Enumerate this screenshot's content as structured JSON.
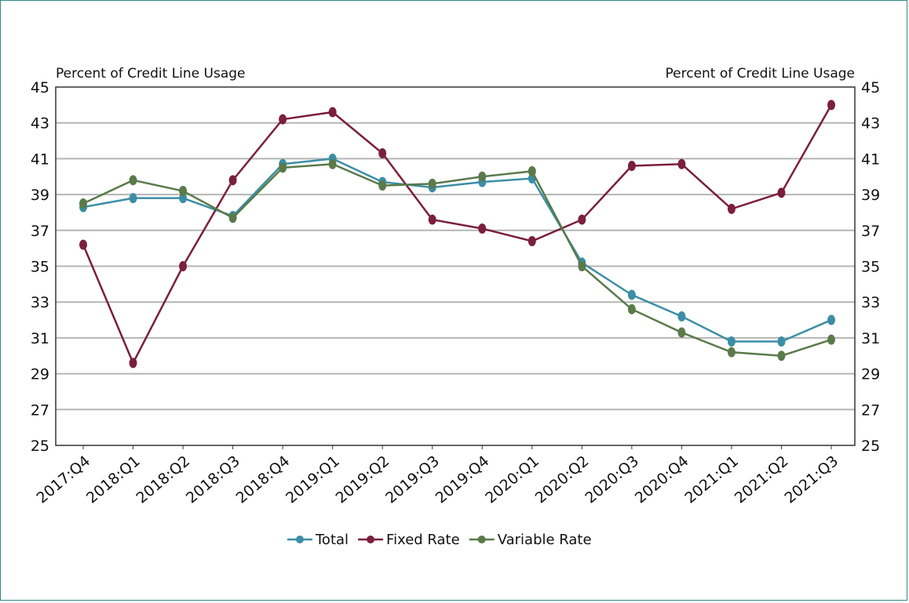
{
  "chart_data": {
    "type": "line",
    "left_axis_title": "Percent of Credit Line Usage",
    "right_axis_title": "Percent of Credit Line Usage",
    "ylim": [
      25,
      45
    ],
    "yticks": [
      25,
      27,
      29,
      31,
      33,
      35,
      37,
      39,
      41,
      43,
      45
    ],
    "categories": [
      "2017:Q4",
      "2018:Q1",
      "2018:Q2",
      "2018:Q3",
      "2018:Q4",
      "2019:Q1",
      "2019:Q2",
      "2019:Q3",
      "2019:Q4",
      "2020:Q1",
      "2020:Q2",
      "2020:Q3",
      "2020:Q4",
      "2021:Q1",
      "2021:Q2",
      "2021:Q3"
    ],
    "series": [
      {
        "name": "Total",
        "color": "#3b8ea5",
        "values": [
          38.3,
          38.8,
          38.8,
          37.8,
          40.7,
          41.0,
          39.7,
          39.4,
          39.7,
          39.9,
          35.2,
          33.4,
          32.2,
          30.8,
          30.8,
          32.0
        ]
      },
      {
        "name": "Fixed Rate",
        "color": "#7a1f3d",
        "values": [
          36.2,
          29.6,
          35.0,
          39.8,
          43.2,
          43.6,
          41.3,
          37.6,
          37.1,
          36.4,
          37.6,
          40.6,
          40.7,
          38.2,
          39.1,
          44.0
        ]
      },
      {
        "name": "Variable Rate",
        "color": "#5a7a4a",
        "values": [
          38.5,
          39.8,
          39.2,
          37.7,
          40.5,
          40.7,
          39.5,
          39.6,
          40.0,
          40.3,
          35.0,
          32.6,
          31.3,
          30.2,
          30.0,
          30.9
        ]
      }
    ],
    "legend_position": "bottom",
    "grid": true
  }
}
